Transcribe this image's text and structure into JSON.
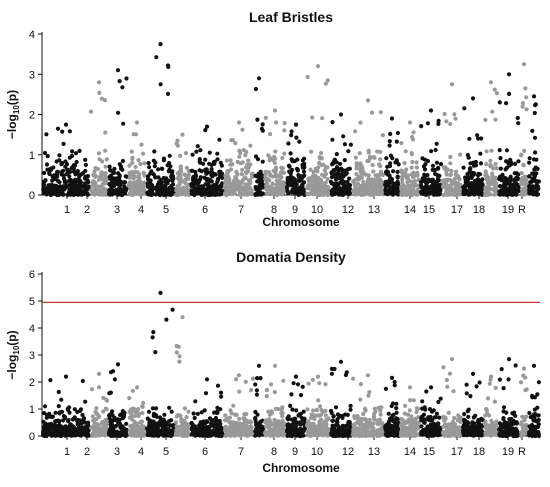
{
  "chart_data": [
    {
      "type": "scatter",
      "title": "Leaf Bristles",
      "xlabel": "Chromosome",
      "ylabel_main": "−log",
      "ylabel_sub": "10",
      "ylabel_tail": "(p)",
      "ylim": [
        0,
        4
      ],
      "yticks": [
        0,
        1,
        2,
        3,
        4
      ],
      "grid": false,
      "legend": "none",
      "threshold": null,
      "chromosomes": [
        "1",
        "2",
        "3",
        "4",
        "5",
        "",
        "6",
        "7",
        "",
        "8",
        "9",
        "10",
        "",
        "12",
        "13",
        "",
        "14",
        "15",
        "",
        "17",
        "18",
        "19",
        "R"
      ],
      "colors": {
        "odd": "#111111",
        "even": "#999999"
      },
      "max_by_chromosome": [
        1.75,
        2.8,
        3.1,
        1.8,
        3.75,
        1.5,
        1.7,
        1.8,
        2.9,
        2.1,
        1.75,
        3.2,
        2.0,
        2.35,
        1.9,
        1.8,
        2.1,
        2.75,
        2.4,
        2.8,
        3.0,
        3.25,
        2.45
      ],
      "top_hits": [
        {
          "chromosome": "5",
          "y": 3.75
        },
        {
          "chromosome": "5",
          "y": 3.65
        },
        {
          "chromosome": "5",
          "y": 3.5
        },
        {
          "chromosome": "10",
          "y": 3.2
        },
        {
          "chromosome": "19",
          "y": 3.25
        },
        {
          "chromosome": "3",
          "y": 3.1
        }
      ]
    },
    {
      "type": "scatter",
      "title": "Domatia Density",
      "xlabel": "Chromosome",
      "ylabel_main": "−log",
      "ylabel_sub": "10",
      "ylabel_tail": "(p)",
      "ylim": [
        0,
        6
      ],
      "yticks": [
        0,
        1,
        2,
        3,
        4,
        5,
        6
      ],
      "grid": false,
      "legend": "none",
      "threshold": 4.95,
      "threshold_color": "#c0392b",
      "chromosomes": [
        "1",
        "2",
        "3",
        "4",
        "5",
        "",
        "6",
        "7",
        "",
        "8",
        "9",
        "10",
        "",
        "12",
        "13",
        "",
        "14",
        "15",
        "",
        "17",
        "18",
        "19",
        "R"
      ],
      "colors": {
        "odd": "#111111",
        "even": "#999999"
      },
      "max_by_chromosome": [
        2.2,
        2.3,
        2.65,
        1.8,
        5.3,
        4.4,
        2.1,
        2.25,
        2.6,
        2.6,
        2.2,
        2.2,
        2.75,
        2.25,
        2.15,
        1.8,
        1.8,
        2.85,
        2.3,
        2.2,
        2.85,
        2.5,
        2.6
      ],
      "top_hits": [
        {
          "chromosome": "5",
          "y": 5.3
        },
        {
          "chromosome": "6",
          "y": 4.4
        },
        {
          "chromosome": "5",
          "y": 3.0
        },
        {
          "chromosome": "15",
          "y": 2.85
        },
        {
          "chromosome": "18",
          "y": 2.85
        }
      ]
    }
  ]
}
